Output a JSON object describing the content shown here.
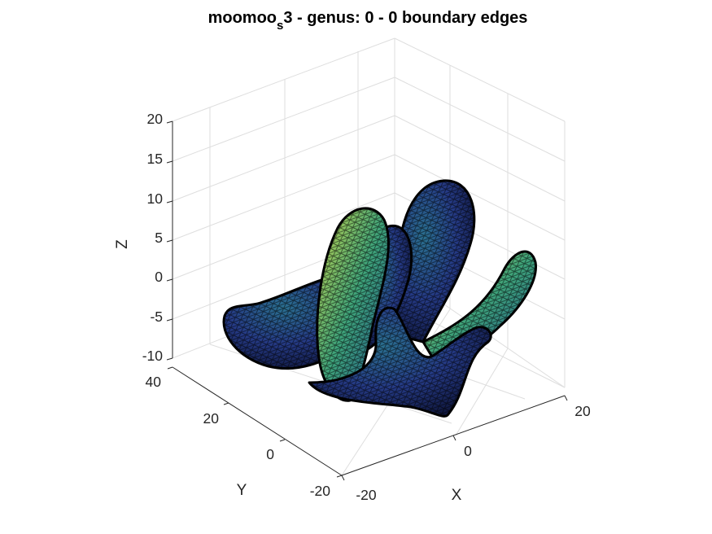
{
  "chart_data": {
    "type": "surface",
    "title": {
      "prefix": "moomoo",
      "subscript": "s",
      "suffix": "3 - genus: 0 - 0 boundary edges"
    },
    "xlabel": "X",
    "ylabel": "Y",
    "zlabel": "Z",
    "x_ticks": [
      "-20",
      "0",
      "20"
    ],
    "y_ticks": [
      "-20",
      "0",
      "20",
      "40"
    ],
    "z_ticks": [
      "20",
      "15",
      "10",
      "5",
      "0",
      "-5",
      "-10"
    ],
    "grid": true,
    "colormap": [
      "#3e26a8",
      "#2e3a8a",
      "#1f5f8b",
      "#21908d",
      "#5dc863",
      "#fde725"
    ],
    "edge_color": "#000000"
  }
}
